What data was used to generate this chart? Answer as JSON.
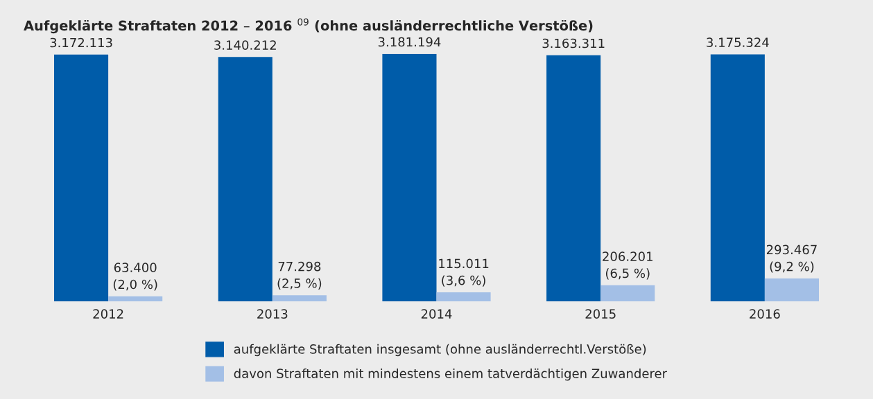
{
  "chart_data": {
    "type": "bar",
    "title": "Aufgeklärte Straftaten 2012 – 2016 $^{09}$ (ohne ausländerrechtliche Verstöße)",
    "categories": [
      "2012",
      "2013",
      "2014",
      "2015",
      "2016"
    ],
    "series": [
      {
        "name": "aufgeklärte Straftaten insgesamt (ohne ausländerrechtl.Verstöße)",
        "color": "#005ca9",
        "values": [
          3172113,
          3140212,
          3181194,
          3163311,
          3175324
        ],
        "value_labels": [
          "3.172.113",
          "3.140.212",
          "3.181.194",
          "3.163.311",
          "3.175.324"
        ]
      },
      {
        "name": "davon Straftaten mit mindestens einem tatverdächtigen Zuwanderer",
        "color": "#a3bfe6",
        "values": [
          63400,
          77298,
          115011,
          206201,
          293467
        ],
        "value_labels": [
          "63.400\n(2,0 %)",
          "77.298\n(2,5 %)",
          "115.011\n(3,6 %)",
          "206.201\n(6,5 %)",
          "293.467\n(9,2 %)"
        ]
      }
    ],
    "legend": "bottom",
    "grid": false
  }
}
